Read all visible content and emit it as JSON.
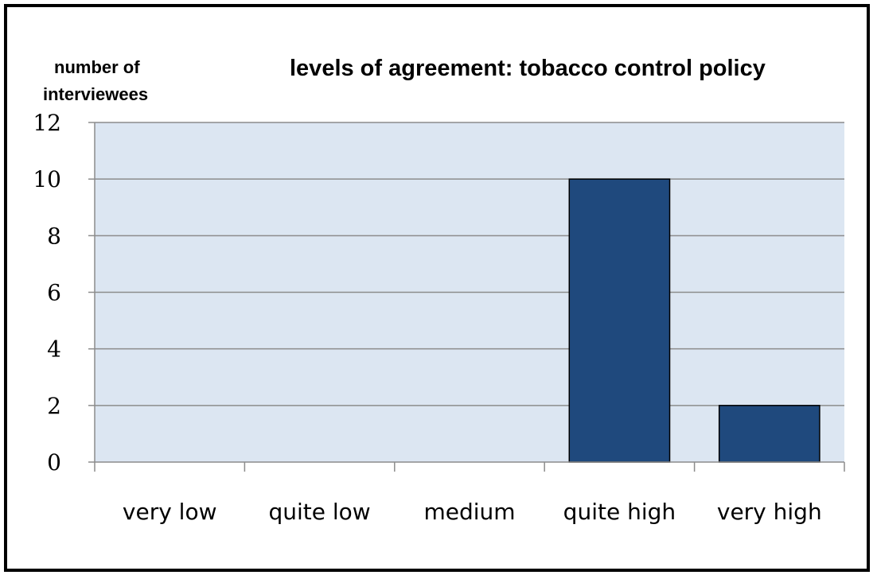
{
  "chart_data": {
    "type": "bar",
    "title": "levels of agreement: tobacco control policy",
    "ylabel_lines": [
      "number of",
      "interviewees"
    ],
    "xlabel": "",
    "categories": [
      "very low",
      "quite low",
      "medium",
      "quite high",
      "very high"
    ],
    "values": [
      0,
      0,
      0,
      10,
      2
    ],
    "ylim": [
      0,
      12
    ],
    "yticks": [
      "0",
      "2",
      "4",
      "6",
      "8",
      "10",
      "12"
    ],
    "grid": true,
    "legend": "none",
    "colors": {
      "bar": "#1f497d",
      "plot_background": "#dce6f2",
      "gridline": "#8c8c8c"
    }
  }
}
